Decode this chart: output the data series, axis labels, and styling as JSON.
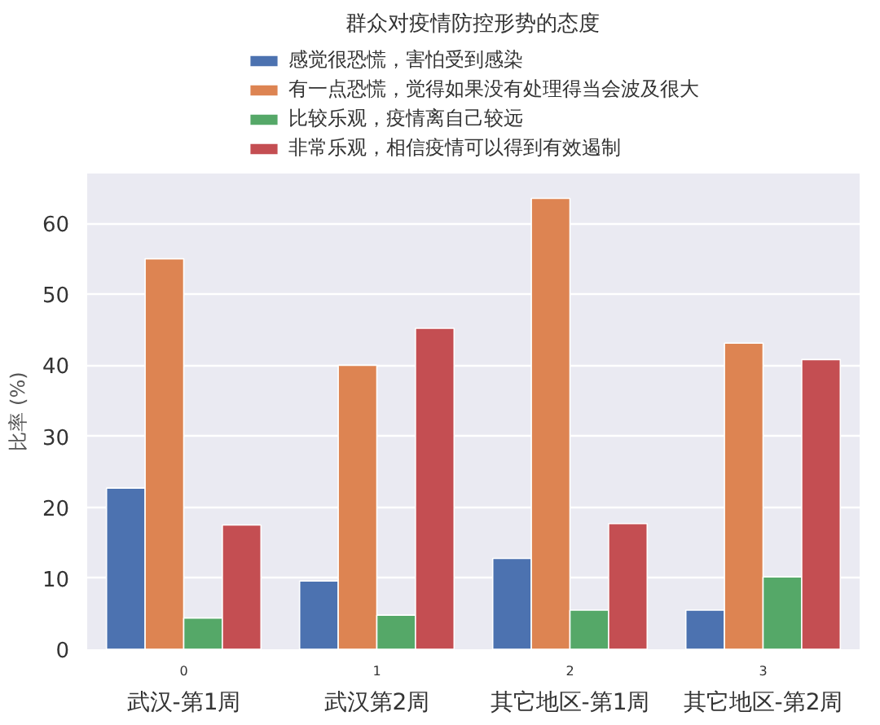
{
  "chart_data": {
    "type": "bar",
    "title": "群众对疫情防控形势的态度",
    "ylabel": "比率 (%)",
    "x": [
      0,
      1,
      2,
      3
    ],
    "xlim": [
      -0.5,
      3.5
    ],
    "xticks": [
      0,
      1,
      2,
      3
    ],
    "ylim": [
      0,
      67
    ],
    "yticks": [
      0,
      10,
      20,
      30,
      40,
      50,
      60
    ],
    "grid": "y",
    "legend": "top",
    "series": [
      {
        "name": "感觉很恐慌，害怕受到感染",
        "color": "#4c72b0",
        "values": [
          22.7,
          9.6,
          12.8,
          5.5
        ]
      },
      {
        "name": "有一点恐慌，觉得如果没有处理得当会波及很大",
        "color": "#dd8452",
        "values": [
          55.0,
          40.0,
          63.5,
          43.1
        ]
      },
      {
        "name": "比较乐观，疫情离自己较远",
        "color": "#55a868",
        "values": [
          4.4,
          4.8,
          5.5,
          10.2
        ]
      },
      {
        "name": "非常乐观，相信疫情可以得到有效遏制",
        "color": "#c44e52",
        "values": [
          17.5,
          45.2,
          17.7,
          40.8
        ]
      }
    ],
    "annotations": [
      "武汉-第1周",
      "武汉第2周",
      "其它地区-第1周",
      "其它地区-第2周"
    ]
  }
}
